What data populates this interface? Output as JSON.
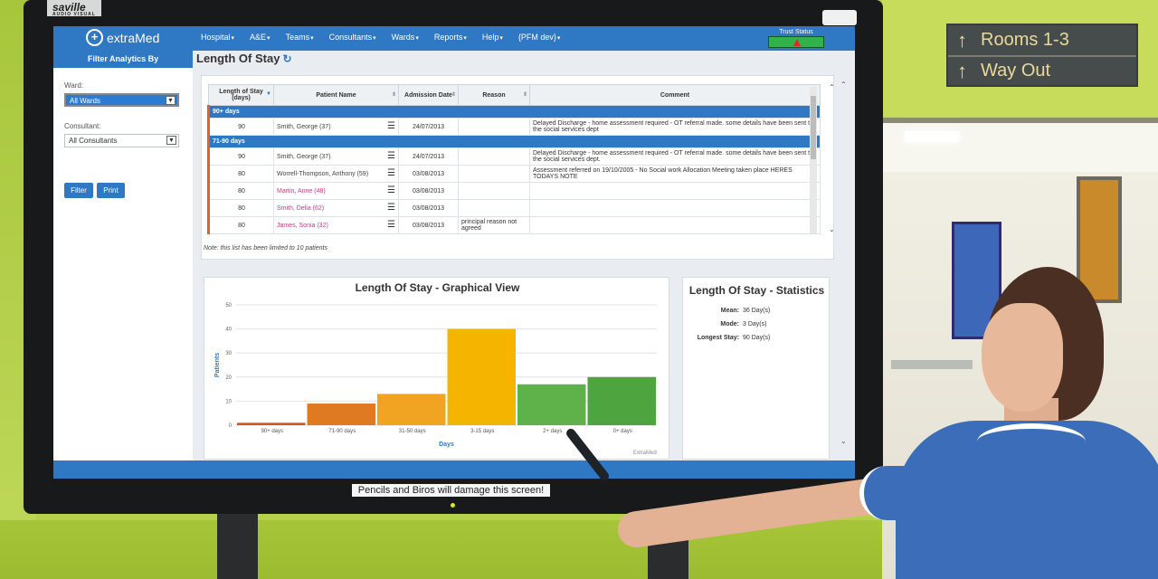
{
  "sign": {
    "line1": "Rooms 1-3",
    "line2": "Way Out"
  },
  "monitor": {
    "brand": "saville",
    "brand_sub": "AUDIO VISUAL",
    "warning_label": "Pencils and Biros will damage this screen!"
  },
  "app": {
    "logo_text": "extraMed",
    "nav": [
      "Hospital",
      "A&E",
      "Teams",
      "Consultants",
      "Wards",
      "Reports",
      "Help",
      "{PFM dev}"
    ],
    "trust_status_label": "Trust Status"
  },
  "filter": {
    "title": "Filter Analytics By",
    "ward_label": "Ward:",
    "ward_value": "All Wards",
    "consultant_label": "Consultant:",
    "consultant_value": "All Consultants",
    "filter_button": "Filter",
    "print_button": "Print"
  },
  "page_title": "Length Of Stay",
  "table": {
    "headers": {
      "los": "Length of Stay (days)",
      "patient": "Patient Name",
      "admission": "Admission Date",
      "reason": "Reason",
      "comment": "Comment"
    },
    "groups": [
      "90+ days",
      "71-90 days"
    ],
    "rows": [
      {
        "los": "90",
        "patient": "Smith, George (37)",
        "date": "24/07/2013",
        "reason": "",
        "comment": "Delayed Discharge - home assessment required - OT referral made. some details have been sent to the social services dept"
      },
      {
        "los": "90",
        "patient": "Smith, George (37)",
        "date": "24/07/2013",
        "reason": "",
        "comment": "Delayed Discharge - home assessment required - OT referral made. some details have been sent to the social services dept."
      },
      {
        "los": "80",
        "patient": "Worrell-Thompson, Anthony (59)",
        "date": "03/08/2013",
        "reason": "",
        "comment": "Assessment referred on 19/10/2005 - No Social work Allocation Meeting taken place HERES TODAYS NOTE"
      },
      {
        "los": "80",
        "patient": "Martin, Anne (48)",
        "date": "03/08/2013",
        "reason": "",
        "comment": ""
      },
      {
        "los": "80",
        "patient": "Smith, Delia (62)",
        "date": "03/08/2013",
        "reason": "",
        "comment": ""
      },
      {
        "los": "80",
        "patient": "James, Sonia (32)",
        "date": "03/08/2013",
        "reason": "principal reason not agreed",
        "comment": ""
      }
    ],
    "note": "Note: this list has been limited to 10 patients"
  },
  "chart_data": {
    "type": "bar",
    "title": "Length Of Stay - Graphical View",
    "xlabel": "Days",
    "ylabel": "Patients",
    "categories": [
      "90+ days",
      "71-90 days",
      "31-50 days",
      "3-15 days",
      "2+ days",
      "0+ days"
    ],
    "values": [
      1,
      9,
      13,
      40,
      17,
      20
    ],
    "colors": [
      "#d9531e",
      "#e07a22",
      "#f0a422",
      "#f5b400",
      "#5fb14a",
      "#4ea43f"
    ],
    "ylim": [
      0,
      50
    ],
    "yticks": [
      0,
      10,
      20,
      30,
      40,
      50
    ],
    "grid": true,
    "credit": "ExtraMed"
  },
  "stats": {
    "title": "Length Of Stay - Statistics",
    "mean_label": "Mean:",
    "mean_value": "36 Day(s)",
    "mode_label": "Mode:",
    "mode_value": "3 Day(s)",
    "longest_label": "Longest Stay:",
    "longest_value": "90 Day(s)"
  }
}
